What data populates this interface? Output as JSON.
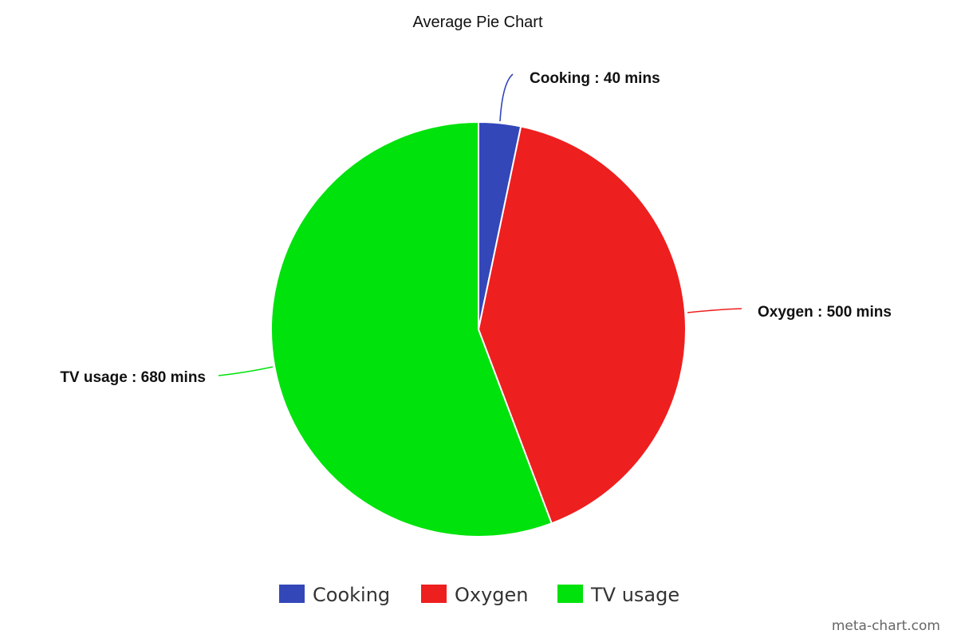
{
  "chart_data": {
    "type": "pie",
    "title": "Average Pie Chart",
    "categories": [
      "Cooking",
      "Oxygen",
      "TV usage"
    ],
    "values": [
      40,
      500,
      680
    ],
    "unit": "mins",
    "data_labels": [
      "Cooking : 40 mins",
      "Oxygen : 500 mins",
      "TV usage : 680 mins"
    ],
    "colors": [
      "#3347b9",
      "#ee1f1f",
      "#00e20c"
    ],
    "legend": {
      "placement": "bottom-center",
      "entries": [
        "Cooking",
        "Oxygen",
        "TV usage"
      ]
    },
    "start_angle": "12 o'clock",
    "direction": "clockwise"
  },
  "watermark": "meta-chart.com"
}
